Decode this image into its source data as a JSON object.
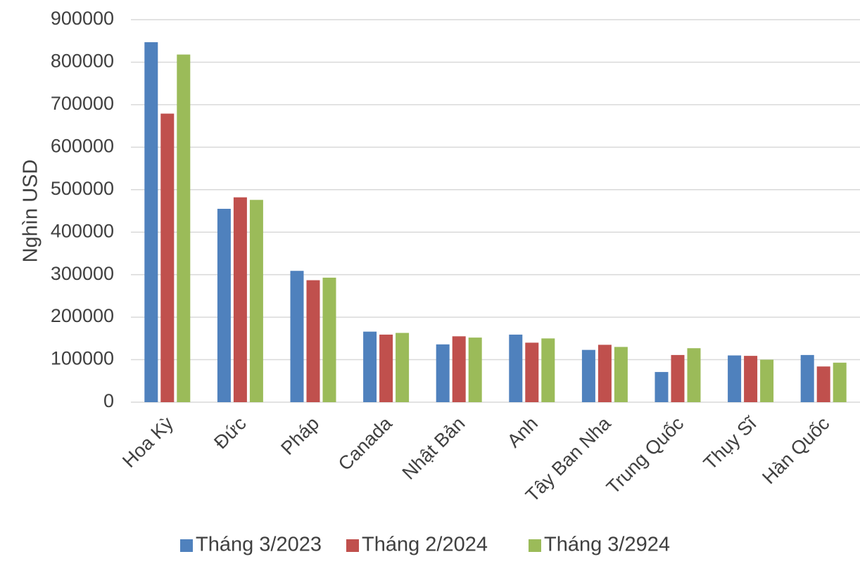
{
  "chart_data": {
    "type": "bar",
    "title": "",
    "xlabel": "",
    "ylabel": "Nghìn USD",
    "ylim": [
      0,
      900000
    ],
    "yticks": [
      0,
      100000,
      200000,
      300000,
      400000,
      500000,
      600000,
      700000,
      800000,
      900000
    ],
    "ytick_labels": [
      "0",
      "100000",
      "200000",
      "300000",
      "400000",
      "500000",
      "600000",
      "700000",
      "800000",
      "900000"
    ],
    "grid": true,
    "legend_position": "bottom",
    "categories": [
      "Hoa Kỳ",
      "Đức",
      "Pháp",
      "Canada",
      "Nhật Bản",
      "Anh",
      "Tây Ban Nha",
      "Trung Quốc",
      "Thụy Sĩ",
      "Hàn Quốc"
    ],
    "series": [
      {
        "name": "Tháng 3/2023",
        "color": "#4f81bd",
        "values": [
          847000,
          455000,
          309000,
          166000,
          136000,
          159000,
          123000,
          71000,
          110000,
          111000
        ]
      },
      {
        "name": "Tháng 2/2024",
        "color": "#c0504d",
        "values": [
          679000,
          482000,
          287000,
          159000,
          155000,
          140000,
          135000,
          111000,
          109000,
          84000
        ]
      },
      {
        "name": "Tháng 3/2924",
        "color": "#9bbb59",
        "values": [
          818000,
          476000,
          293000,
          163000,
          152000,
          150000,
          130000,
          127000,
          100000,
          93000
        ]
      }
    ]
  }
}
